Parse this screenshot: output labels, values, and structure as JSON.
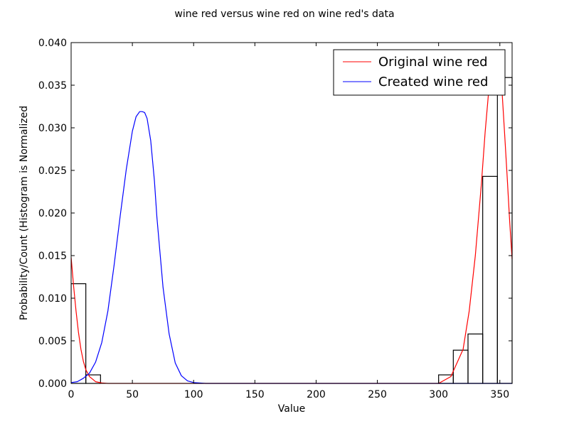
{
  "chart_data": {
    "type": "line",
    "title": "wine red versus wine red on wine red's data",
    "xlabel": "Value",
    "ylabel": "Probability/Count (Histogram is Normalized",
    "xlim": [
      0,
      360
    ],
    "ylim": [
      0,
      0.04
    ],
    "x_ticks": [
      0,
      50,
      100,
      150,
      200,
      250,
      300,
      350
    ],
    "x_tick_labels": [
      "0",
      "50",
      "100",
      "150",
      "200",
      "250",
      "300",
      "350"
    ],
    "y_ticks": [
      0,
      0.005,
      0.01,
      0.015,
      0.02,
      0.025,
      0.03,
      0.035,
      0.04
    ],
    "y_tick_labels": [
      "0.000",
      "0.005",
      "0.010",
      "0.015",
      "0.020",
      "0.025",
      "0.030",
      "0.035",
      "0.040"
    ],
    "grid": false,
    "legend_position": "top-right",
    "histogram": {
      "bins": [
        {
          "x0": 0,
          "x1": 12,
          "value": 0.0117
        },
        {
          "x0": 12,
          "x1": 24,
          "value": 0.001
        },
        {
          "x0": 300,
          "x1": 312,
          "value": 0.001
        },
        {
          "x0": 312,
          "x1": 324,
          "value": 0.0039
        },
        {
          "x0": 324,
          "x1": 336,
          "value": 0.0058
        },
        {
          "x0": 336,
          "x1": 348,
          "value": 0.0243
        },
        {
          "x0": 348,
          "x1": 360,
          "value": 0.0359
        }
      ],
      "color": "#000000"
    },
    "series": [
      {
        "name": "Original wine red",
        "color": "#ff0000",
        "x": [
          0,
          2,
          4,
          6,
          8,
          10,
          12,
          15,
          20,
          25,
          30,
          40,
          60,
          300,
          310,
          320,
          325,
          330,
          335,
          338,
          341,
          344,
          346,
          348,
          350,
          352,
          354,
          356,
          358,
          360
        ],
        "values": [
          0.0148,
          0.0115,
          0.0085,
          0.006,
          0.004,
          0.0026,
          0.0016,
          0.0008,
          0.0002,
          5e-05,
          0.0,
          0.0,
          0.0,
          0.0,
          0.0008,
          0.004,
          0.0085,
          0.015,
          0.0235,
          0.0295,
          0.0345,
          0.0378,
          0.0388,
          0.0386,
          0.0368,
          0.0338,
          0.029,
          0.0242,
          0.019,
          0.0146
        ]
      },
      {
        "name": "Created wine red",
        "color": "#0000ff",
        "x": [
          0,
          5,
          10,
          15,
          20,
          25,
          30,
          35,
          40,
          45,
          50,
          53,
          56,
          58,
          60,
          62,
          65,
          68,
          70,
          75,
          80,
          85,
          90,
          95,
          100,
          110,
          120,
          360
        ],
        "values": [
          0.0001,
          0.0002,
          0.0006,
          0.0012,
          0.0025,
          0.0048,
          0.0085,
          0.0138,
          0.0196,
          0.0251,
          0.0296,
          0.0313,
          0.0319,
          0.0319,
          0.0318,
          0.0311,
          0.0285,
          0.0238,
          0.0195,
          0.0113,
          0.0058,
          0.0024,
          0.0009,
          0.0003,
          0.0001,
          0.0,
          0.0,
          0.0
        ]
      }
    ]
  }
}
